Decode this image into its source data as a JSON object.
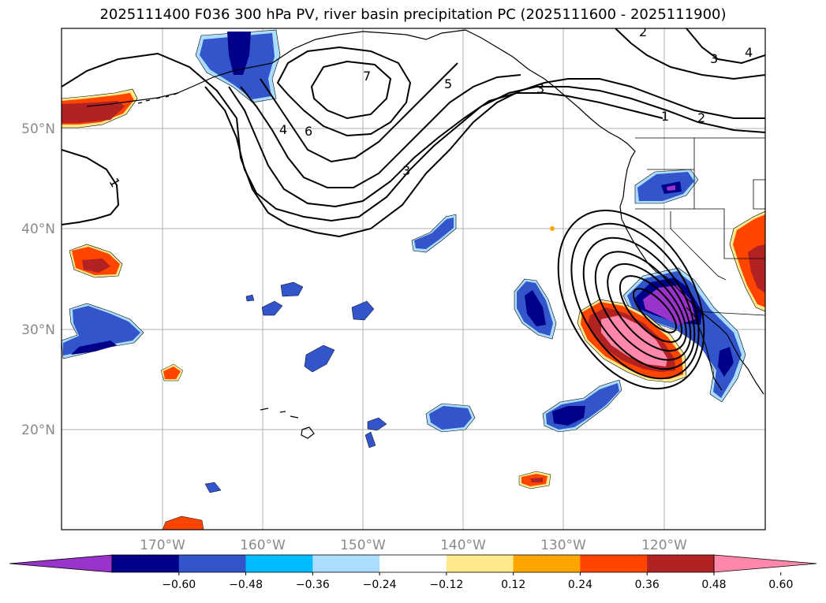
{
  "title": "2025111400 F036 300 hPa PV, river basin precipitation PC (2025111600 - 2025111900)",
  "map": {
    "lat_labels": [
      "50°N",
      "40°N",
      "30°N",
      "20°N"
    ],
    "lon_labels": [
      "170°W",
      "160°W",
      "150°W",
      "140°W",
      "130°W",
      "120°W"
    ],
    "contour_labels": [
      "1",
      "1",
      "2",
      "2",
      "3",
      "3",
      "3",
      "4",
      "4",
      "5",
      "6",
      "7"
    ],
    "gridlines": true,
    "coastlines": true
  },
  "colorbar": {
    "tick_labels": [
      "−0.60",
      "−0.48",
      "−0.36",
      "−0.24",
      "−0.12",
      "0.12",
      "0.24",
      "0.36",
      "0.48",
      "0.60"
    ],
    "colors": [
      "#9933cc",
      "#000088",
      "#3355cc",
      "#00bbff",
      "#aaddff",
      "#ffffff",
      "#ffe98a",
      "#ffa500",
      "#ff4500",
      "#b22222",
      "#ff88aa"
    ],
    "extend": "both"
  }
}
